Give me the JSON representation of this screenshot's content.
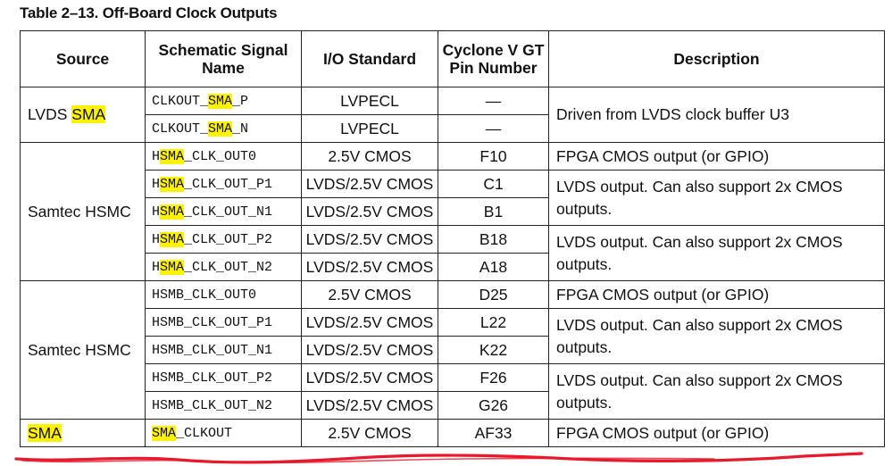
{
  "caption": "Table 2–13.  Off-Board Clock Outputs",
  "headers": [
    "Source",
    "Schematic Signal Name",
    "I/O Standard",
    "Cyclone V GT Pin Number",
    "Description"
  ],
  "header_lines": {
    "signal_1": "Schematic Signal",
    "signal_2": "Name",
    "pin_1": "Cyclone V GT",
    "pin_2": "Pin Number"
  },
  "groups": {
    "lvds_pre": "LVDS ",
    "lvds_hl": "SMA",
    "samtec_a": "Samtec HSMC",
    "samtec_b": "Samtec HSMC",
    "sma": "SMA"
  },
  "rows": [
    {
      "sig_pre": "CLKOUT_",
      "sig_hl": "SMA",
      "sig_post": "_P",
      "io": "LVPECL",
      "pin": "—"
    },
    {
      "sig_pre": "CLKOUT_",
      "sig_hl": "SMA",
      "sig_post": "_N",
      "io": "LVPECL",
      "pin": "—"
    },
    {
      "sig_pre": "H",
      "sig_hl": "SMA",
      "sig_post": "_CLK_OUT0",
      "io": "2.5V CMOS",
      "pin": "F10"
    },
    {
      "sig_pre": "H",
      "sig_hl": "SMA",
      "sig_post": "_CLK_OUT_P1",
      "io": "LVDS/2.5V CMOS",
      "pin": "C1"
    },
    {
      "sig_pre": "H",
      "sig_hl": "SMA",
      "sig_post": "_CLK_OUT_N1",
      "io": "LVDS/2.5V CMOS",
      "pin": "B1"
    },
    {
      "sig_pre": "H",
      "sig_hl": "SMA",
      "sig_post": "_CLK_OUT_P2",
      "io": "LVDS/2.5V CMOS",
      "pin": "B18"
    },
    {
      "sig_pre": "H",
      "sig_hl": "SMA",
      "sig_post": "_CLK_OUT_N2",
      "io": "LVDS/2.5V CMOS",
      "pin": "A18"
    },
    {
      "sig_pre": "HSMB_CLK_OUT0",
      "sig_hl": "",
      "sig_post": "",
      "io": "2.5V CMOS",
      "pin": "D25"
    },
    {
      "sig_pre": "HSMB_CLK_OUT_P1",
      "sig_hl": "",
      "sig_post": "",
      "io": "LVDS/2.5V CMOS",
      "pin": "L22"
    },
    {
      "sig_pre": "HSMB_CLK_OUT_N1",
      "sig_hl": "",
      "sig_post": "",
      "io": "LVDS/2.5V CMOS",
      "pin": "K22"
    },
    {
      "sig_pre": "HSMB_CLK_OUT_P2",
      "sig_hl": "",
      "sig_post": "",
      "io": "LVDS/2.5V CMOS",
      "pin": "F26"
    },
    {
      "sig_pre": "HSMB_CLK_OUT_N2",
      "sig_hl": "",
      "sig_post": "",
      "io": "LVDS/2.5V CMOS",
      "pin": "G26"
    },
    {
      "sig_pre": "",
      "sig_hl": "SMA",
      "sig_post": "_CLKOUT",
      "io": "2.5V CMOS",
      "pin": "AF33"
    }
  ],
  "descriptions": {
    "d0": "Driven from LVDS clock buffer U3",
    "d1": "FPGA CMOS output (or GPIO)",
    "d2": "LVDS output. Can also support 2x CMOS outputs.",
    "d3": "LVDS output. Can also support 2x CMOS outputs.",
    "d4": "FPGA CMOS output (or GPIO)",
    "d5": "LVDS output. Can also support 2x CMOS outputs.",
    "d6": "LVDS output. Can also support 2x CMOS outputs.",
    "d7": "FPGA CMOS output (or GPIO)"
  },
  "colors": {
    "highlight": "#fff200",
    "underline_annotation": "#e8192c"
  }
}
